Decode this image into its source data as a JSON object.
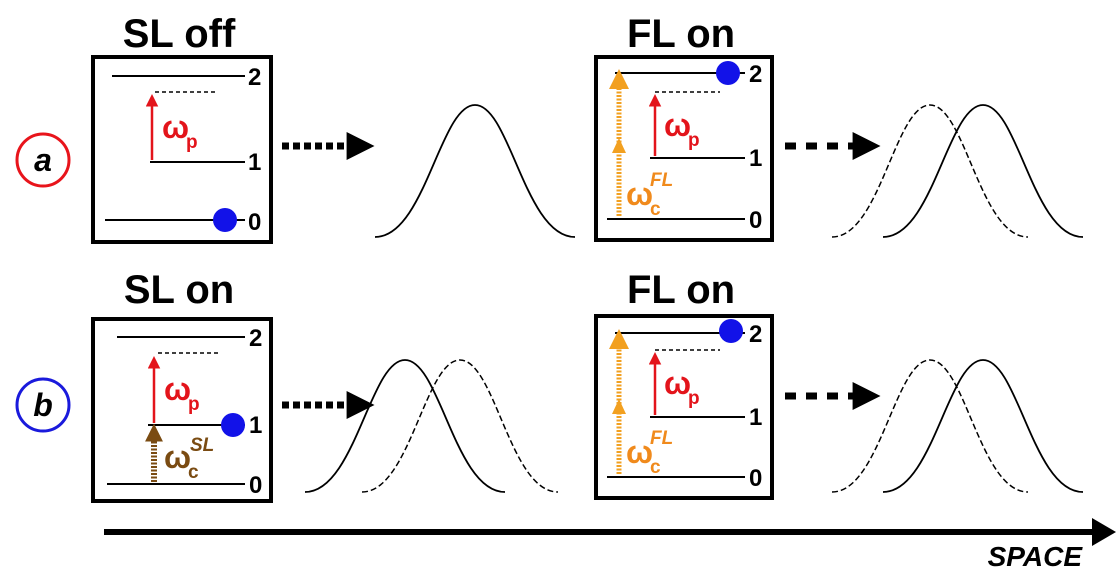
{
  "row_a": {
    "label": "a",
    "label_color": "#e8141b",
    "left_panel": {
      "title": "SL off",
      "levels": [
        "2",
        "1",
        "0"
      ],
      "pump": "ω",
      "pump_sub": "p"
    },
    "right_panel": {
      "title": "FL on",
      "levels": [
        "2",
        "1",
        "0"
      ],
      "pump": "ω",
      "pump_sub": "p",
      "control": "ω",
      "control_sub": "c",
      "control_sup": "FL"
    }
  },
  "row_b": {
    "label": "b",
    "label_color": "#1a1adc",
    "left_panel": {
      "title": "SL on",
      "levels": [
        "2",
        "1",
        "0"
      ],
      "pump": "ω",
      "pump_sub": "p",
      "control": "ω",
      "control_sub": "c",
      "control_sup": "SL"
    },
    "right_panel": {
      "title": "FL on",
      "levels": [
        "2",
        "1",
        "0"
      ],
      "pump": "ω",
      "pump_sub": "p",
      "control": "ω",
      "control_sub": "c",
      "control_sup": "FL"
    }
  },
  "axis": {
    "label": "SPACE"
  },
  "colors": {
    "pump": "#e3141b",
    "control_fl": "#f2a020",
    "control_fl_text": "#f08a1c",
    "control_sl": "#7a4b12",
    "atom": "#1212e8"
  }
}
